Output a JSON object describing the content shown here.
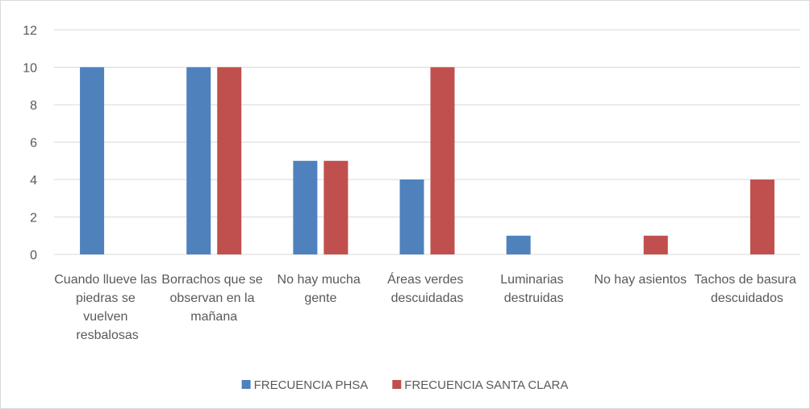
{
  "chart_data": {
    "type": "bar",
    "categories": [
      "Cuando llueve las piedras se vuelven resbalosas",
      "Borrachos que se observan en la mañana",
      "No hay mucha gente",
      "Áreas verdes descuidadas",
      "Luminarias destruidas",
      "No hay asientos",
      "Tachos de basura descuidados"
    ],
    "series": [
      {
        "name": "FRECUENCIA PHSA",
        "color": "#4f81bd",
        "values": [
          10,
          10,
          5,
          4,
          1,
          0,
          0
        ]
      },
      {
        "name": "FRECUENCIA SANTA CLARA",
        "color": "#c0504d",
        "values": [
          0,
          10,
          5,
          10,
          0,
          1,
          4
        ]
      }
    ],
    "ylim": [
      0,
      12
    ],
    "yticks": [
      0,
      2,
      4,
      6,
      8,
      10,
      12
    ],
    "grid": true,
    "legend": "bottom"
  }
}
